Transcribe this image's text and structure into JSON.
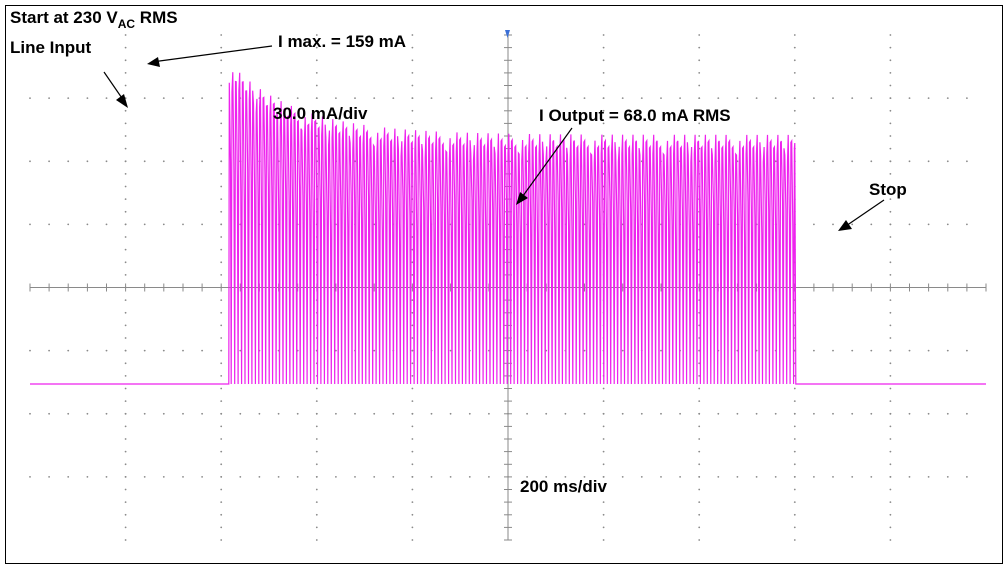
{
  "chart_data": {
    "type": "line",
    "x_scale_label": "200 ms/div",
    "y_scale_label": "30.0 mA/div",
    "grid": true,
    "annotations": {
      "start_prefix": "Start at 230 V",
      "start_sub": "AC",
      "start_suffix": " RMS",
      "line_input": "Line Input",
      "i_max": "I max. = 159 mA",
      "i_output": "I Output = 68.0 mA RMS",
      "stop": "Stop"
    },
    "trace": {
      "color": "#ee22ee",
      "baseline_ma": 0,
      "peak_ma": 159,
      "steady_peak_ma": 123,
      "steady_trough_ma": 90,
      "start_ms": 1040,
      "stop_ms": 4000,
      "x_range_ms": [
        0,
        5000
      ]
    },
    "colors": {
      "grid": "#8a8a8a",
      "frame": "#000000",
      "arrows": "#000000"
    }
  }
}
